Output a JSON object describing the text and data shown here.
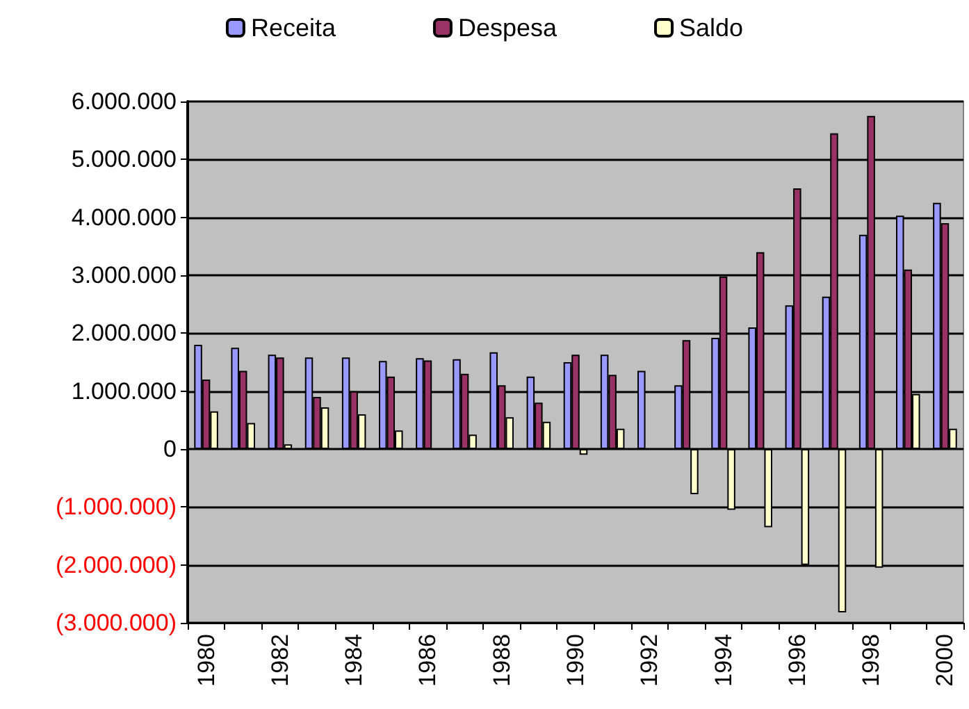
{
  "chart_data": {
    "type": "bar",
    "categories": [
      "1980",
      null,
      "1982",
      null,
      "1984",
      null,
      "1986",
      null,
      "1988",
      null,
      "1990",
      null,
      "1992",
      null,
      "1994",
      null,
      "1996",
      null,
      "1998",
      null,
      "2000"
    ],
    "series": [
      {
        "name": "Receita",
        "color": "#9999ff",
        "values": [
          1800000,
          1750000,
          1630000,
          1580000,
          1580000,
          1520000,
          1570000,
          1550000,
          1670000,
          1250000,
          1500000,
          1630000,
          1350000,
          1100000,
          1920000,
          2100000,
          2480000,
          2630000,
          3700000,
          4030000,
          4250000
        ]
      },
      {
        "name": "Despesa",
        "color": "#993366",
        "values": [
          1200000,
          1350000,
          1580000,
          900000,
          1000000,
          1250000,
          1530000,
          1300000,
          1100000,
          800000,
          1630000,
          1280000,
          null,
          1880000,
          2980000,
          3400000,
          4500000,
          5450000,
          5750000,
          3100000,
          3900000
        ]
      },
      {
        "name": "Saldo",
        "color": "#ffffcc",
        "values": [
          650000,
          450000,
          80000,
          720000,
          600000,
          320000,
          null,
          250000,
          550000,
          470000,
          -100000,
          350000,
          null,
          -780000,
          -1050000,
          -1350000,
          -2000000,
          -2820000,
          -2050000,
          950000,
          350000
        ]
      }
    ],
    "ylim": [
      -3000000,
      6000000
    ],
    "yticks": [
      {
        "value": -3000000,
        "label": "(3.000.000)"
      },
      {
        "value": -2000000,
        "label": "(2.000.000)"
      },
      {
        "value": -1000000,
        "label": "(1.000.000)"
      },
      {
        "value": 0,
        "label": "0"
      },
      {
        "value": 1000000,
        "label": "1.000.000"
      },
      {
        "value": 2000000,
        "label": "2.000.000"
      },
      {
        "value": 3000000,
        "label": "3.000.000"
      },
      {
        "value": 4000000,
        "label": "4.000.000"
      },
      {
        "value": 5000000,
        "label": "5.000.000"
      },
      {
        "value": 6000000,
        "label": "6.000.000"
      }
    ],
    "grid": "y",
    "legend": "top"
  }
}
